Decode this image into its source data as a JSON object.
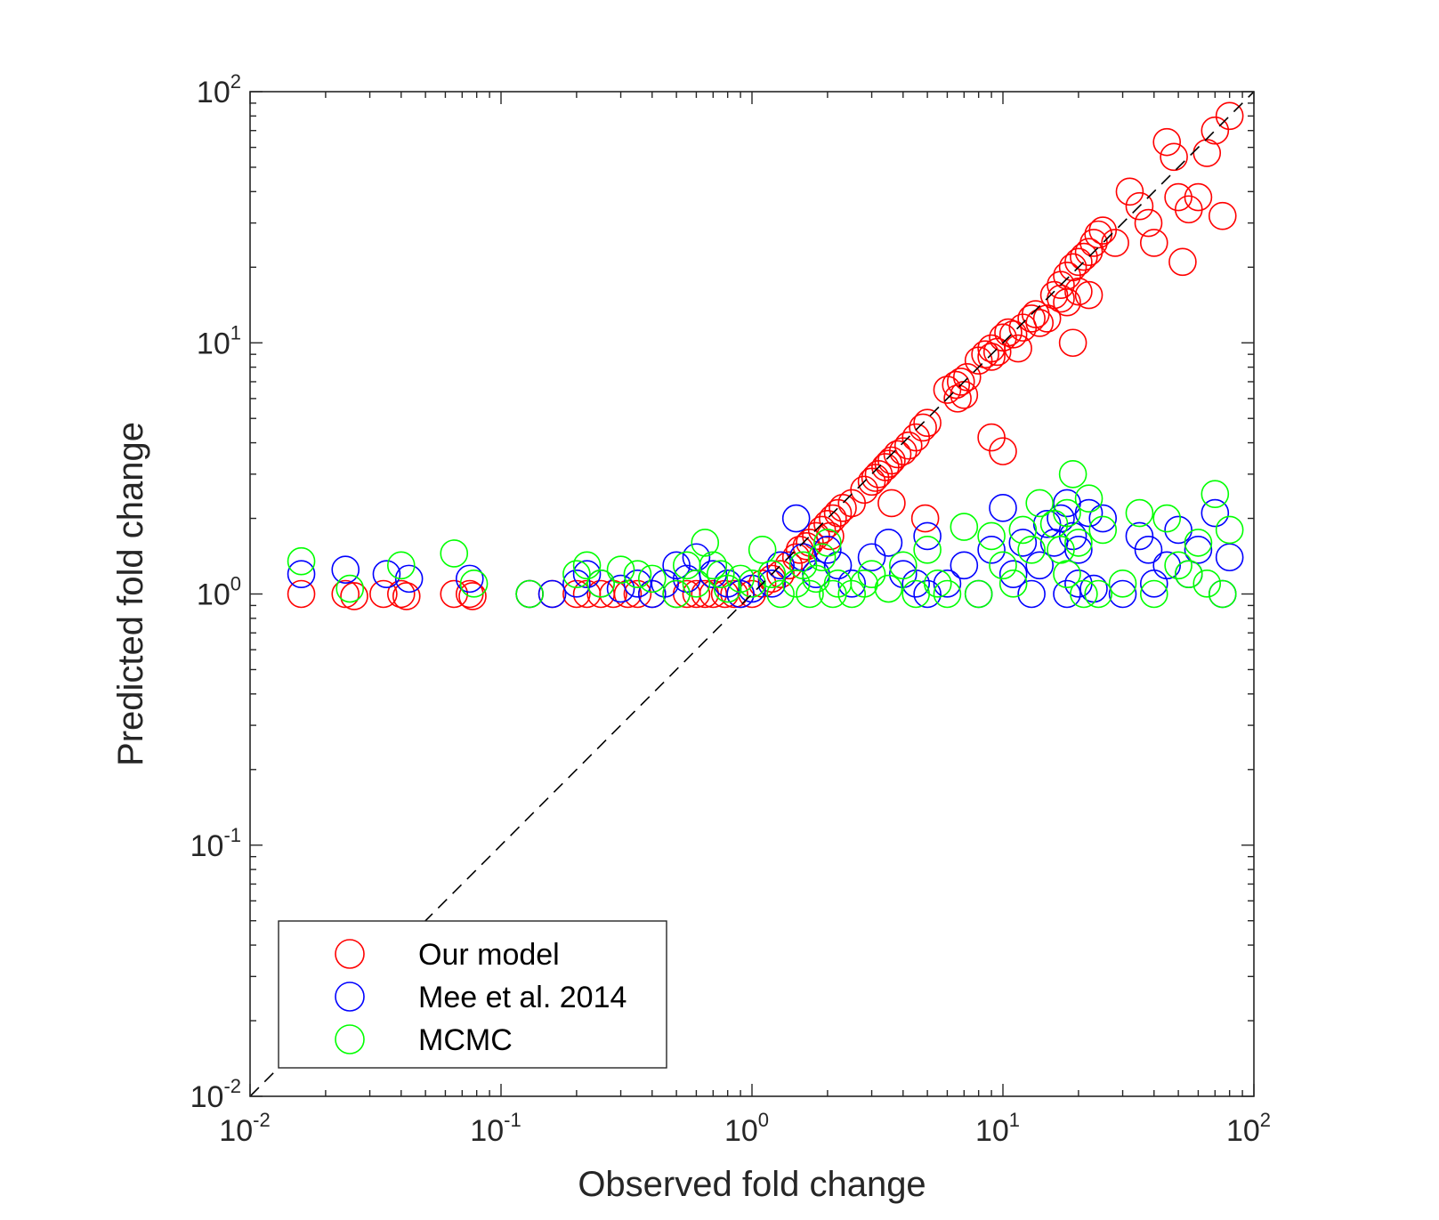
{
  "chart_data": {
    "type": "scatter",
    "title": "",
    "xlabel": "Observed fold change",
    "ylabel": "Predicted fold change",
    "xscale": "log",
    "yscale": "log",
    "xlim": [
      0.01,
      100
    ],
    "ylim": [
      0.01,
      100
    ],
    "x_ticks": [
      {
        "base": "10",
        "exp": "-2",
        "value": 0.01
      },
      {
        "base": "10",
        "exp": "-1",
        "value": 0.1
      },
      {
        "base": "10",
        "exp": "0",
        "value": 1
      },
      {
        "base": "10",
        "exp": "1",
        "value": 10
      },
      {
        "base": "10",
        "exp": "2",
        "value": 100
      }
    ],
    "y_ticks": [
      {
        "base": "10",
        "exp": "-2",
        "value": 0.01
      },
      {
        "base": "10",
        "exp": "-1",
        "value": 0.1
      },
      {
        "base": "10",
        "exp": "0",
        "value": 1
      },
      {
        "base": "10",
        "exp": "1",
        "value": 10
      },
      {
        "base": "10",
        "exp": "2",
        "value": 100
      }
    ],
    "grid": false,
    "legend_position": "bottom-left",
    "reference_line": {
      "style": "dashed",
      "color": "#000000",
      "description": "y = x"
    },
    "series": [
      {
        "name": "Our model",
        "color": "#ff0000",
        "marker": "open-circle",
        "points": [
          [
            0.016,
            1.0
          ],
          [
            0.024,
            1.0
          ],
          [
            0.026,
            0.98
          ],
          [
            0.034,
            1.0
          ],
          [
            0.04,
            1.0
          ],
          [
            0.042,
            0.98
          ],
          [
            0.065,
            1.0
          ],
          [
            0.075,
            1.0
          ],
          [
            0.077,
            0.98
          ],
          [
            0.13,
            1.0
          ],
          [
            0.16,
            1.0
          ],
          [
            0.2,
            1.0
          ],
          [
            0.22,
            1.0
          ],
          [
            0.25,
            1.0
          ],
          [
            0.28,
            1.0
          ],
          [
            0.32,
            1.0
          ],
          [
            0.35,
            1.0
          ],
          [
            0.4,
            1.0
          ],
          [
            0.5,
            1.0
          ],
          [
            0.55,
            1.0
          ],
          [
            0.6,
            1.0
          ],
          [
            0.65,
            1.0
          ],
          [
            0.7,
            1.0
          ],
          [
            0.78,
            1.0
          ],
          [
            0.85,
            1.0
          ],
          [
            0.9,
            1.0
          ],
          [
            1.0,
            1.0
          ],
          [
            1.1,
            1.1
          ],
          [
            1.2,
            1.15
          ],
          [
            1.3,
            1.2
          ],
          [
            1.4,
            1.3
          ],
          [
            1.5,
            1.4
          ],
          [
            1.55,
            1.5
          ],
          [
            1.65,
            1.55
          ],
          [
            1.7,
            1.6
          ],
          [
            1.8,
            1.7
          ],
          [
            1.9,
            1.8
          ],
          [
            2.0,
            1.9
          ],
          [
            2.05,
            1.7
          ],
          [
            2.1,
            2.0
          ],
          [
            2.2,
            2.1
          ],
          [
            2.3,
            2.2
          ],
          [
            2.5,
            2.3
          ],
          [
            2.8,
            2.6
          ],
          [
            3.0,
            2.8
          ],
          [
            3.1,
            2.9
          ],
          [
            3.2,
            3.0
          ],
          [
            3.4,
            3.2
          ],
          [
            3.5,
            3.3
          ],
          [
            3.6,
            3.4
          ],
          [
            3.8,
            3.6
          ],
          [
            4.0,
            3.7
          ],
          [
            4.2,
            3.9
          ],
          [
            4.5,
            4.2
          ],
          [
            4.8,
            4.6
          ],
          [
            5.0,
            4.8
          ],
          [
            3.6,
            2.3
          ],
          [
            4.9,
            2.0
          ],
          [
            6.0,
            6.5
          ],
          [
            6.5,
            6.8
          ],
          [
            6.8,
            7.0
          ],
          [
            7.2,
            7.3
          ],
          [
            7.0,
            6.2
          ],
          [
            6.6,
            6.0
          ],
          [
            8.0,
            8.5
          ],
          [
            8.5,
            9.0
          ],
          [
            9.0,
            9.5
          ],
          [
            9.5,
            9.2
          ],
          [
            9.0,
            8.8
          ],
          [
            10.0,
            10.5
          ],
          [
            10.5,
            11.0
          ],
          [
            11.0,
            10.8
          ],
          [
            11.5,
            9.5
          ],
          [
            12.0,
            11.5
          ],
          [
            13.0,
            12.5
          ],
          [
            13.5,
            13.0
          ],
          [
            14.0,
            12.0
          ],
          [
            15.0,
            12.5
          ],
          [
            9.0,
            4.2
          ],
          [
            10.0,
            3.7
          ],
          [
            16.0,
            15.5
          ],
          [
            17.0,
            17.0
          ],
          [
            18.0,
            18.5
          ],
          [
            19.0,
            20.0
          ],
          [
            20.0,
            21.0
          ],
          [
            21.0,
            22.0
          ],
          [
            22.0,
            23.0
          ],
          [
            23.0,
            25.0
          ],
          [
            24.0,
            27.0
          ],
          [
            25.0,
            28.0
          ],
          [
            18.0,
            14.5
          ],
          [
            20.0,
            16.0
          ],
          [
            22.0,
            15.5
          ],
          [
            19.0,
            10.0
          ],
          [
            17.0,
            15.0
          ],
          [
            28.0,
            25.0
          ],
          [
            32.0,
            40.0
          ],
          [
            35.0,
            35.0
          ],
          [
            38.0,
            30.0
          ],
          [
            40.0,
            25.0
          ],
          [
            45.0,
            63.0
          ],
          [
            48.0,
            55.0
          ],
          [
            50.0,
            38.0
          ],
          [
            55.0,
            34.0
          ],
          [
            60.0,
            38.0
          ],
          [
            65.0,
            57.0
          ],
          [
            70.0,
            70.0
          ],
          [
            75.0,
            32.0
          ],
          [
            80.0,
            80.0
          ],
          [
            52.0,
            21.0
          ]
        ]
      },
      {
        "name": "Mee et al. 2014",
        "color": "#0000ff",
        "marker": "open-circle",
        "points": [
          [
            0.016,
            1.2
          ],
          [
            0.024,
            1.25
          ],
          [
            0.035,
            1.2
          ],
          [
            0.043,
            1.15
          ],
          [
            0.075,
            1.15
          ],
          [
            0.13,
            1.0
          ],
          [
            0.16,
            1.0
          ],
          [
            0.2,
            1.1
          ],
          [
            0.22,
            1.2
          ],
          [
            0.25,
            1.1
          ],
          [
            0.3,
            1.05
          ],
          [
            0.35,
            1.1
          ],
          [
            0.4,
            1.0
          ],
          [
            0.45,
            1.1
          ],
          [
            0.5,
            1.3
          ],
          [
            0.55,
            1.15
          ],
          [
            0.6,
            1.4
          ],
          [
            0.7,
            1.2
          ],
          [
            0.8,
            1.1
          ],
          [
            0.9,
            1.0
          ],
          [
            1.0,
            1.05
          ],
          [
            1.2,
            1.1
          ],
          [
            1.3,
            1.3
          ],
          [
            1.5,
            2.0
          ],
          [
            1.6,
            1.4
          ],
          [
            1.8,
            1.2
          ],
          [
            2.0,
            1.5
          ],
          [
            2.2,
            1.3
          ],
          [
            2.5,
            1.1
          ],
          [
            3.0,
            1.4
          ],
          [
            3.5,
            1.6
          ],
          [
            4.0,
            1.2
          ],
          [
            4.5,
            1.1
          ],
          [
            5.0,
            1.0
          ],
          [
            5.0,
            1.7
          ],
          [
            6.0,
            1.1
          ],
          [
            7.0,
            1.3
          ],
          [
            8.0,
            1.0
          ],
          [
            9.0,
            1.5
          ],
          [
            10.0,
            2.2
          ],
          [
            11.0,
            1.2
          ],
          [
            12.0,
            1.6
          ],
          [
            13.0,
            1.0
          ],
          [
            14.0,
            1.3
          ],
          [
            15.0,
            1.9
          ],
          [
            16.0,
            1.6
          ],
          [
            17.0,
            2.0
          ],
          [
            18.0,
            2.3
          ],
          [
            19.0,
            1.7
          ],
          [
            20.0,
            1.5
          ],
          [
            22.0,
            2.1
          ],
          [
            25.0,
            2.0
          ],
          [
            18.0,
            1.0
          ],
          [
            20.0,
            1.1
          ],
          [
            23.0,
            1.05
          ],
          [
            30.0,
            1.0
          ],
          [
            35.0,
            1.7
          ],
          [
            38.0,
            1.5
          ],
          [
            40.0,
            1.1
          ],
          [
            45.0,
            1.3
          ],
          [
            50.0,
            1.8
          ],
          [
            55.0,
            1.2
          ],
          [
            60.0,
            1.5
          ],
          [
            70.0,
            2.1
          ],
          [
            75.0,
            1.0
          ],
          [
            80.0,
            1.4
          ]
        ]
      },
      {
        "name": "MCMC",
        "color": "#00ff00",
        "marker": "open-circle",
        "points": [
          [
            0.016,
            1.35
          ],
          [
            0.025,
            1.05
          ],
          [
            0.04,
            1.3
          ],
          [
            0.065,
            1.45
          ],
          [
            0.078,
            1.1
          ],
          [
            0.13,
            1.0
          ],
          [
            0.2,
            1.2
          ],
          [
            0.22,
            1.3
          ],
          [
            0.25,
            1.1
          ],
          [
            0.3,
            1.25
          ],
          [
            0.35,
            1.2
          ],
          [
            0.4,
            1.15
          ],
          [
            0.5,
            1.0
          ],
          [
            0.55,
            1.3
          ],
          [
            0.6,
            1.1
          ],
          [
            0.65,
            1.6
          ],
          [
            0.7,
            1.3
          ],
          [
            0.75,
            1.2
          ],
          [
            0.8,
            1.05
          ],
          [
            0.9,
            1.15
          ],
          [
            1.0,
            1.1
          ],
          [
            1.1,
            1.5
          ],
          [
            1.2,
            1.2
          ],
          [
            1.3,
            1.0
          ],
          [
            1.5,
            1.1
          ],
          [
            1.6,
            1.3
          ],
          [
            1.7,
            1.0
          ],
          [
            1.8,
            1.15
          ],
          [
            1.9,
            1.4
          ],
          [
            2.0,
            1.6
          ],
          [
            2.1,
            1.0
          ],
          [
            2.2,
            1.1
          ],
          [
            2.5,
            1.0
          ],
          [
            2.8,
            1.1
          ],
          [
            3.0,
            1.2
          ],
          [
            3.5,
            1.05
          ],
          [
            4.0,
            1.3
          ],
          [
            4.5,
            1.0
          ],
          [
            5.0,
            1.5
          ],
          [
            5.5,
            1.1
          ],
          [
            6.0,
            1.0
          ],
          [
            7.0,
            1.85
          ],
          [
            8.0,
            1.0
          ],
          [
            9.0,
            1.7
          ],
          [
            10.0,
            1.3
          ],
          [
            11.0,
            1.1
          ],
          [
            12.0,
            1.8
          ],
          [
            13.0,
            1.5
          ],
          [
            14.0,
            2.3
          ],
          [
            16.0,
            1.9
          ],
          [
            17.0,
            1.5
          ],
          [
            18.0,
            2.1
          ],
          [
            19.0,
            3.0
          ],
          [
            20.0,
            1.6
          ],
          [
            22.0,
            2.4
          ],
          [
            25.0,
            1.8
          ],
          [
            18.0,
            1.2
          ],
          [
            21.0,
            1.0
          ],
          [
            24.0,
            1.0
          ],
          [
            30.0,
            1.1
          ],
          [
            35.0,
            2.1
          ],
          [
            40.0,
            1.0
          ],
          [
            45.0,
            2.0
          ],
          [
            50.0,
            1.3
          ],
          [
            55.0,
            1.2
          ],
          [
            60.0,
            1.6
          ],
          [
            65.0,
            1.1
          ],
          [
            70.0,
            2.5
          ],
          [
            75.0,
            1.0
          ],
          [
            80.0,
            1.8
          ]
        ]
      }
    ]
  }
}
